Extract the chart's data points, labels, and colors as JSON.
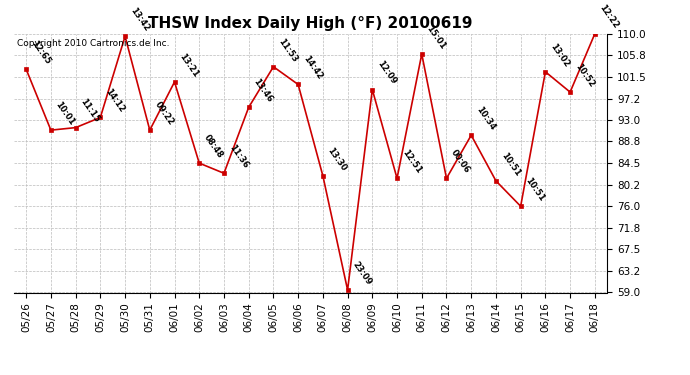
{
  "title": "THSW Index Daily High (°F) 20100619",
  "copyright": "Copyright 2010 Cartronics.de Inc.",
  "dates": [
    "05/26",
    "05/27",
    "05/28",
    "05/29",
    "05/30",
    "05/31",
    "06/01",
    "06/02",
    "06/03",
    "06/04",
    "06/05",
    "06/06",
    "06/07",
    "06/08",
    "06/09",
    "06/10",
    "06/11",
    "06/12",
    "06/13",
    "06/14",
    "06/15",
    "06/16",
    "06/17",
    "06/18"
  ],
  "values": [
    103.0,
    91.0,
    91.5,
    93.5,
    109.5,
    91.0,
    100.5,
    84.5,
    82.5,
    95.5,
    103.5,
    100.0,
    82.0,
    59.5,
    99.0,
    81.5,
    106.0,
    81.5,
    90.0,
    81.0,
    76.0,
    102.5,
    98.5,
    110.0
  ],
  "labels": [
    "12:65",
    "10:01",
    "11:15",
    "14:12",
    "13:42",
    "09:22",
    "13:21",
    "08:48",
    "11:36",
    "13:46",
    "11:53",
    "14:42",
    "13:30",
    "23:09",
    "12:09",
    "12:51",
    "15:01",
    "00:06",
    "10:34",
    "10:51",
    "10:51",
    "13:02",
    "10:52",
    "12:22"
  ],
  "ylim": [
    59.0,
    110.0
  ],
  "yticks": [
    59.0,
    63.2,
    67.5,
    71.8,
    76.0,
    80.2,
    84.5,
    88.8,
    93.0,
    97.2,
    101.5,
    105.8,
    110.0
  ],
  "line_color": "#cc0000",
  "marker_color": "#cc0000",
  "bg_color": "#ffffff",
  "grid_color": "#bbbbbb",
  "title_fontsize": 11,
  "label_fontsize": 6.0,
  "tick_fontsize": 7.5,
  "copyright_fontsize": 6.5
}
